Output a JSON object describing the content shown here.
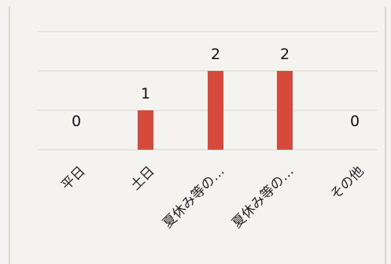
{
  "chart_data": {
    "type": "bar",
    "categories": [
      "平日",
      "土日",
      "夏休み等の…",
      "夏休み等の…",
      "その他"
    ],
    "values": [
      0,
      1,
      2,
      2,
      0
    ],
    "data_labels": [
      "0",
      "1",
      "2",
      "2",
      "0"
    ],
    "title": "",
    "xlabel": "",
    "ylabel": "",
    "ylim": [
      0,
      3
    ],
    "grid": true,
    "legend": "none",
    "bar_color": "#d64a3c"
  }
}
